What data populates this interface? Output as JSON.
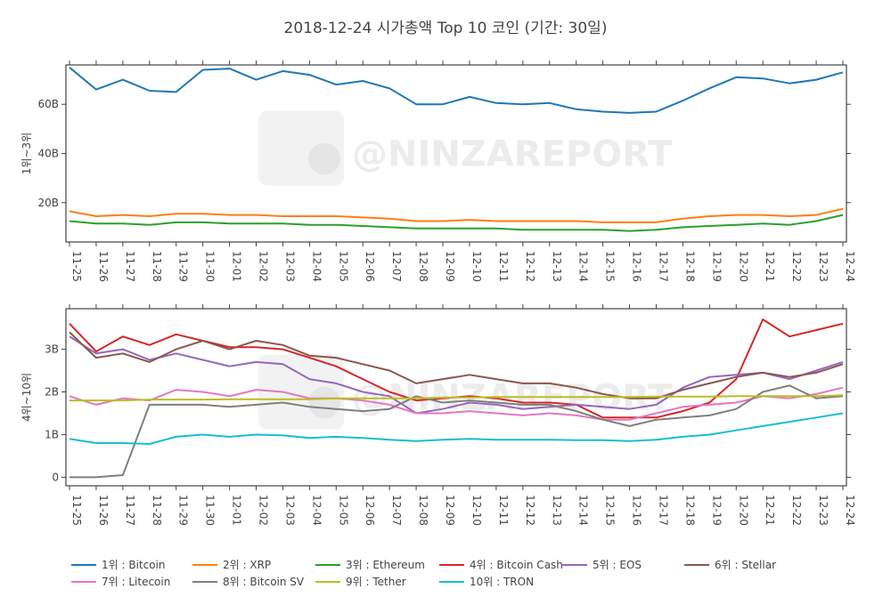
{
  "chart_data": {
    "type": "line",
    "title": "2018-12-24 시가총액 Top 10 코인 (기간: 30일)",
    "watermark": "@NINZAREPORT",
    "x": [
      "11-25",
      "11-26",
      "11-27",
      "11-28",
      "11-29",
      "11-30",
      "12-01",
      "12-02",
      "12-03",
      "12-04",
      "12-05",
      "12-06",
      "12-07",
      "12-08",
      "12-09",
      "12-10",
      "12-11",
      "12-12",
      "12-13",
      "12-14",
      "12-15",
      "12-16",
      "12-17",
      "12-18",
      "12-19",
      "12-20",
      "12-21",
      "12-22",
      "12-23",
      "12-24"
    ],
    "legend_position": "bottom",
    "grid": false,
    "panels": [
      {
        "ylabel": "1위~3위",
        "ylim": [
          4,
          76
        ],
        "yticks": [
          {
            "value": 20,
            "label": "20B"
          },
          {
            "value": 40,
            "label": "40B"
          },
          {
            "value": 60,
            "label": "60B"
          }
        ],
        "series": [
          {
            "name": "1위 : Bitcoin",
            "color": "#1f77b4",
            "values": [
              75.0,
              66.0,
              70.0,
              65.5,
              65.0,
              74.0,
              74.5,
              70.0,
              73.5,
              72.0,
              68.0,
              69.5,
              66.5,
              60.0,
              60.0,
              63.0,
              60.5,
              60.0,
              60.5,
              58.0,
              57.0,
              56.5,
              57.0,
              61.5,
              66.5,
              71.0,
              70.5,
              68.5,
              70.0,
              73.0
            ]
          },
          {
            "name": "2위 : XRP",
            "color": "#ff7f0e",
            "values": [
              16.5,
              14.5,
              15.0,
              14.5,
              15.5,
              15.5,
              15.0,
              15.0,
              14.5,
              14.5,
              14.5,
              14.0,
              13.5,
              12.5,
              12.5,
              13.0,
              12.5,
              12.5,
              12.5,
              12.5,
              12.0,
              12.0,
              12.0,
              13.5,
              14.5,
              15.0,
              15.0,
              14.5,
              15.0,
              17.5
            ]
          },
          {
            "name": "3위 : Ethereum",
            "color": "#2ca02c",
            "values": [
              12.5,
              11.5,
              11.5,
              11.0,
              12.0,
              12.0,
              11.5,
              11.5,
              11.5,
              11.0,
              11.0,
              10.5,
              10.0,
              9.5,
              9.5,
              9.5,
              9.5,
              9.0,
              9.0,
              9.0,
              9.0,
              8.5,
              9.0,
              10.0,
              10.5,
              11.0,
              11.5,
              11.0,
              12.5,
              15.0
            ]
          }
        ]
      },
      {
        "ylabel": "4위~10위",
        "ylim": [
          -0.2,
          3.95
        ],
        "yticks": [
          {
            "value": 0,
            "label": "0"
          },
          {
            "value": 1,
            "label": "1B"
          },
          {
            "value": 2,
            "label": "2B"
          },
          {
            "value": 3,
            "label": "3B"
          }
        ],
        "series": [
          {
            "name": "4위 : Bitcoin Cash",
            "color": "#d62728",
            "values": [
              3.6,
              2.95,
              3.3,
              3.1,
              3.35,
              3.2,
              3.05,
              3.05,
              3.0,
              2.8,
              2.6,
              2.3,
              2.0,
              1.8,
              1.85,
              1.9,
              1.85,
              1.75,
              1.75,
              1.7,
              1.4,
              1.4,
              1.4,
              1.55,
              1.75,
              2.3,
              3.7,
              3.3,
              3.45,
              3.6
            ]
          },
          {
            "name": "5위 : EOS",
            "color": "#9467bd",
            "values": [
              3.3,
              2.9,
              3.0,
              2.75,
              2.9,
              2.75,
              2.6,
              2.7,
              2.65,
              2.3,
              2.2,
              2.0,
              1.9,
              1.5,
              1.6,
              1.75,
              1.7,
              1.6,
              1.65,
              1.7,
              1.65,
              1.6,
              1.7,
              2.1,
              2.35,
              2.4,
              2.45,
              2.3,
              2.5,
              2.7
            ]
          },
          {
            "name": "6위 : Stellar",
            "color": "#8c564b",
            "values": [
              3.4,
              2.8,
              2.9,
              2.7,
              3.0,
              3.2,
              3.0,
              3.2,
              3.1,
              2.85,
              2.8,
              2.65,
              2.5,
              2.2,
              2.3,
              2.4,
              2.3,
              2.2,
              2.2,
              2.1,
              1.95,
              1.85,
              1.85,
              2.05,
              2.2,
              2.35,
              2.45,
              2.35,
              2.45,
              2.65
            ]
          },
          {
            "name": "7위 : Litecoin",
            "color": "#e377c2",
            "values": [
              1.9,
              1.7,
              1.85,
              1.8,
              2.05,
              2.0,
              1.9,
              2.05,
              2.0,
              1.85,
              1.85,
              1.8,
              1.7,
              1.5,
              1.5,
              1.55,
              1.5,
              1.45,
              1.5,
              1.45,
              1.35,
              1.35,
              1.5,
              1.65,
              1.7,
              1.75,
              1.9,
              1.85,
              1.95,
              2.1
            ]
          },
          {
            "name": "8위 : Bitcoin SV",
            "color": "#7f7f7f",
            "values": [
              0,
              0,
              0.05,
              1.7,
              1.7,
              1.7,
              1.65,
              1.7,
              1.75,
              1.65,
              1.6,
              1.55,
              1.6,
              1.9,
              1.75,
              1.8,
              1.75,
              1.7,
              1.7,
              1.55,
              1.35,
              1.2,
              1.35,
              1.4,
              1.45,
              1.6,
              2.0,
              2.15,
              1.85,
              1.9
            ]
          },
          {
            "name": "9위 : Tether",
            "color": "#bcbd22",
            "values": [
              1.8,
              1.8,
              1.8,
              1.82,
              1.82,
              1.82,
              1.83,
              1.83,
              1.83,
              1.83,
              1.85,
              1.85,
              1.85,
              1.85,
              1.87,
              1.87,
              1.88,
              1.88,
              1.88,
              1.88,
              1.88,
              1.88,
              1.89,
              1.89,
              1.89,
              1.9,
              1.9,
              1.9,
              1.9,
              1.92
            ]
          },
          {
            "name": "10위 : TRON",
            "color": "#17becf",
            "values": [
              0.9,
              0.8,
              0.8,
              0.78,
              0.95,
              1.0,
              0.95,
              1.0,
              0.98,
              0.92,
              0.95,
              0.92,
              0.88,
              0.85,
              0.88,
              0.9,
              0.88,
              0.88,
              0.88,
              0.87,
              0.87,
              0.85,
              0.88,
              0.95,
              1.0,
              1.1,
              1.2,
              1.3,
              1.4,
              1.5
            ]
          }
        ]
      }
    ]
  }
}
